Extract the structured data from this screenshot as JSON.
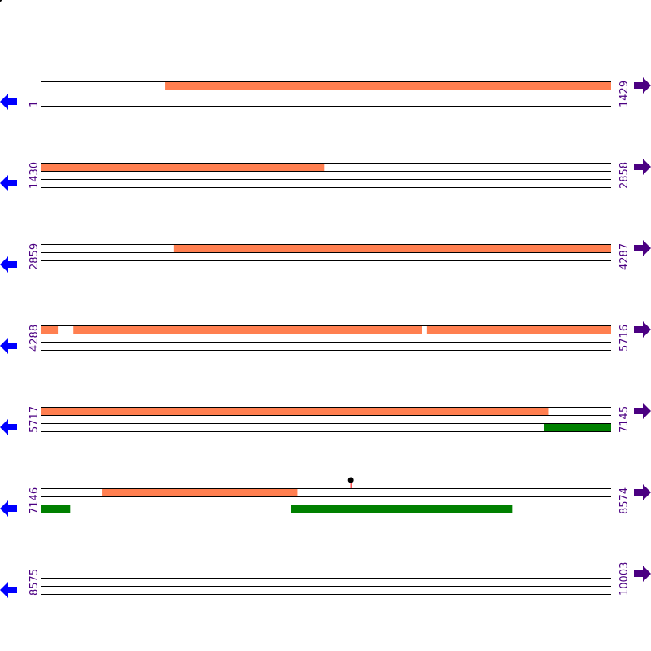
{
  "colors": {
    "line": "#000000",
    "orange_feature": "#ff7f50",
    "green_feature": "#008000",
    "label": "#4b0082",
    "left_arrow": "#0000ff",
    "right_arrow": "#4b0082",
    "pin": "#000000",
    "pin_stem": "#ff0000"
  },
  "bp_per_row": 1429,
  "rows": [
    {
      "start_label": "1",
      "end_label": "1429",
      "start": 1,
      "end": 1429,
      "top": [
        {
          "from": 313,
          "to": 1429
        }
      ],
      "bottom": [],
      "pins": []
    },
    {
      "start_label": "1430",
      "end_label": "2858",
      "start": 1430,
      "end": 2858,
      "top": [
        {
          "from": 1430,
          "to": 2139
        }
      ],
      "bottom": [],
      "pins": []
    },
    {
      "start_label": "2859",
      "end_label": "4287",
      "start": 2859,
      "end": 4287,
      "top": [
        {
          "from": 3193,
          "to": 4287
        }
      ],
      "bottom": [],
      "pins": []
    },
    {
      "start_label": "4288",
      "end_label": "5716",
      "start": 4288,
      "end": 5716,
      "top": [
        {
          "from": 4288,
          "to": 4330
        },
        {
          "from": 4370,
          "to": 5242
        },
        {
          "from": 5256,
          "to": 5716
        }
      ],
      "bottom": [],
      "pins": []
    },
    {
      "start_label": "5717",
      "end_label": "7145",
      "start": 5717,
      "end": 7145,
      "top": [
        {
          "from": 5717,
          "to": 6989
        }
      ],
      "bottom": [
        {
          "from": 6977,
          "to": 7145
        }
      ],
      "pins": []
    },
    {
      "start_label": "7146",
      "end_label": "8574",
      "start": 7146,
      "end": 8574,
      "top": [
        {
          "from": 7299,
          "to": 7788
        }
      ],
      "bottom": [
        {
          "from": 7146,
          "to": 7219
        },
        {
          "from": 7772,
          "to": 8326
        }
      ],
      "pins": [
        7923
      ]
    },
    {
      "start_label": "8575",
      "end_label": "10003",
      "start": 8575,
      "end": 10003,
      "top": [],
      "bottom": [],
      "pins": []
    }
  ],
  "icons": {
    "left": "arrow-left-icon",
    "right": "arrow-right-icon"
  }
}
